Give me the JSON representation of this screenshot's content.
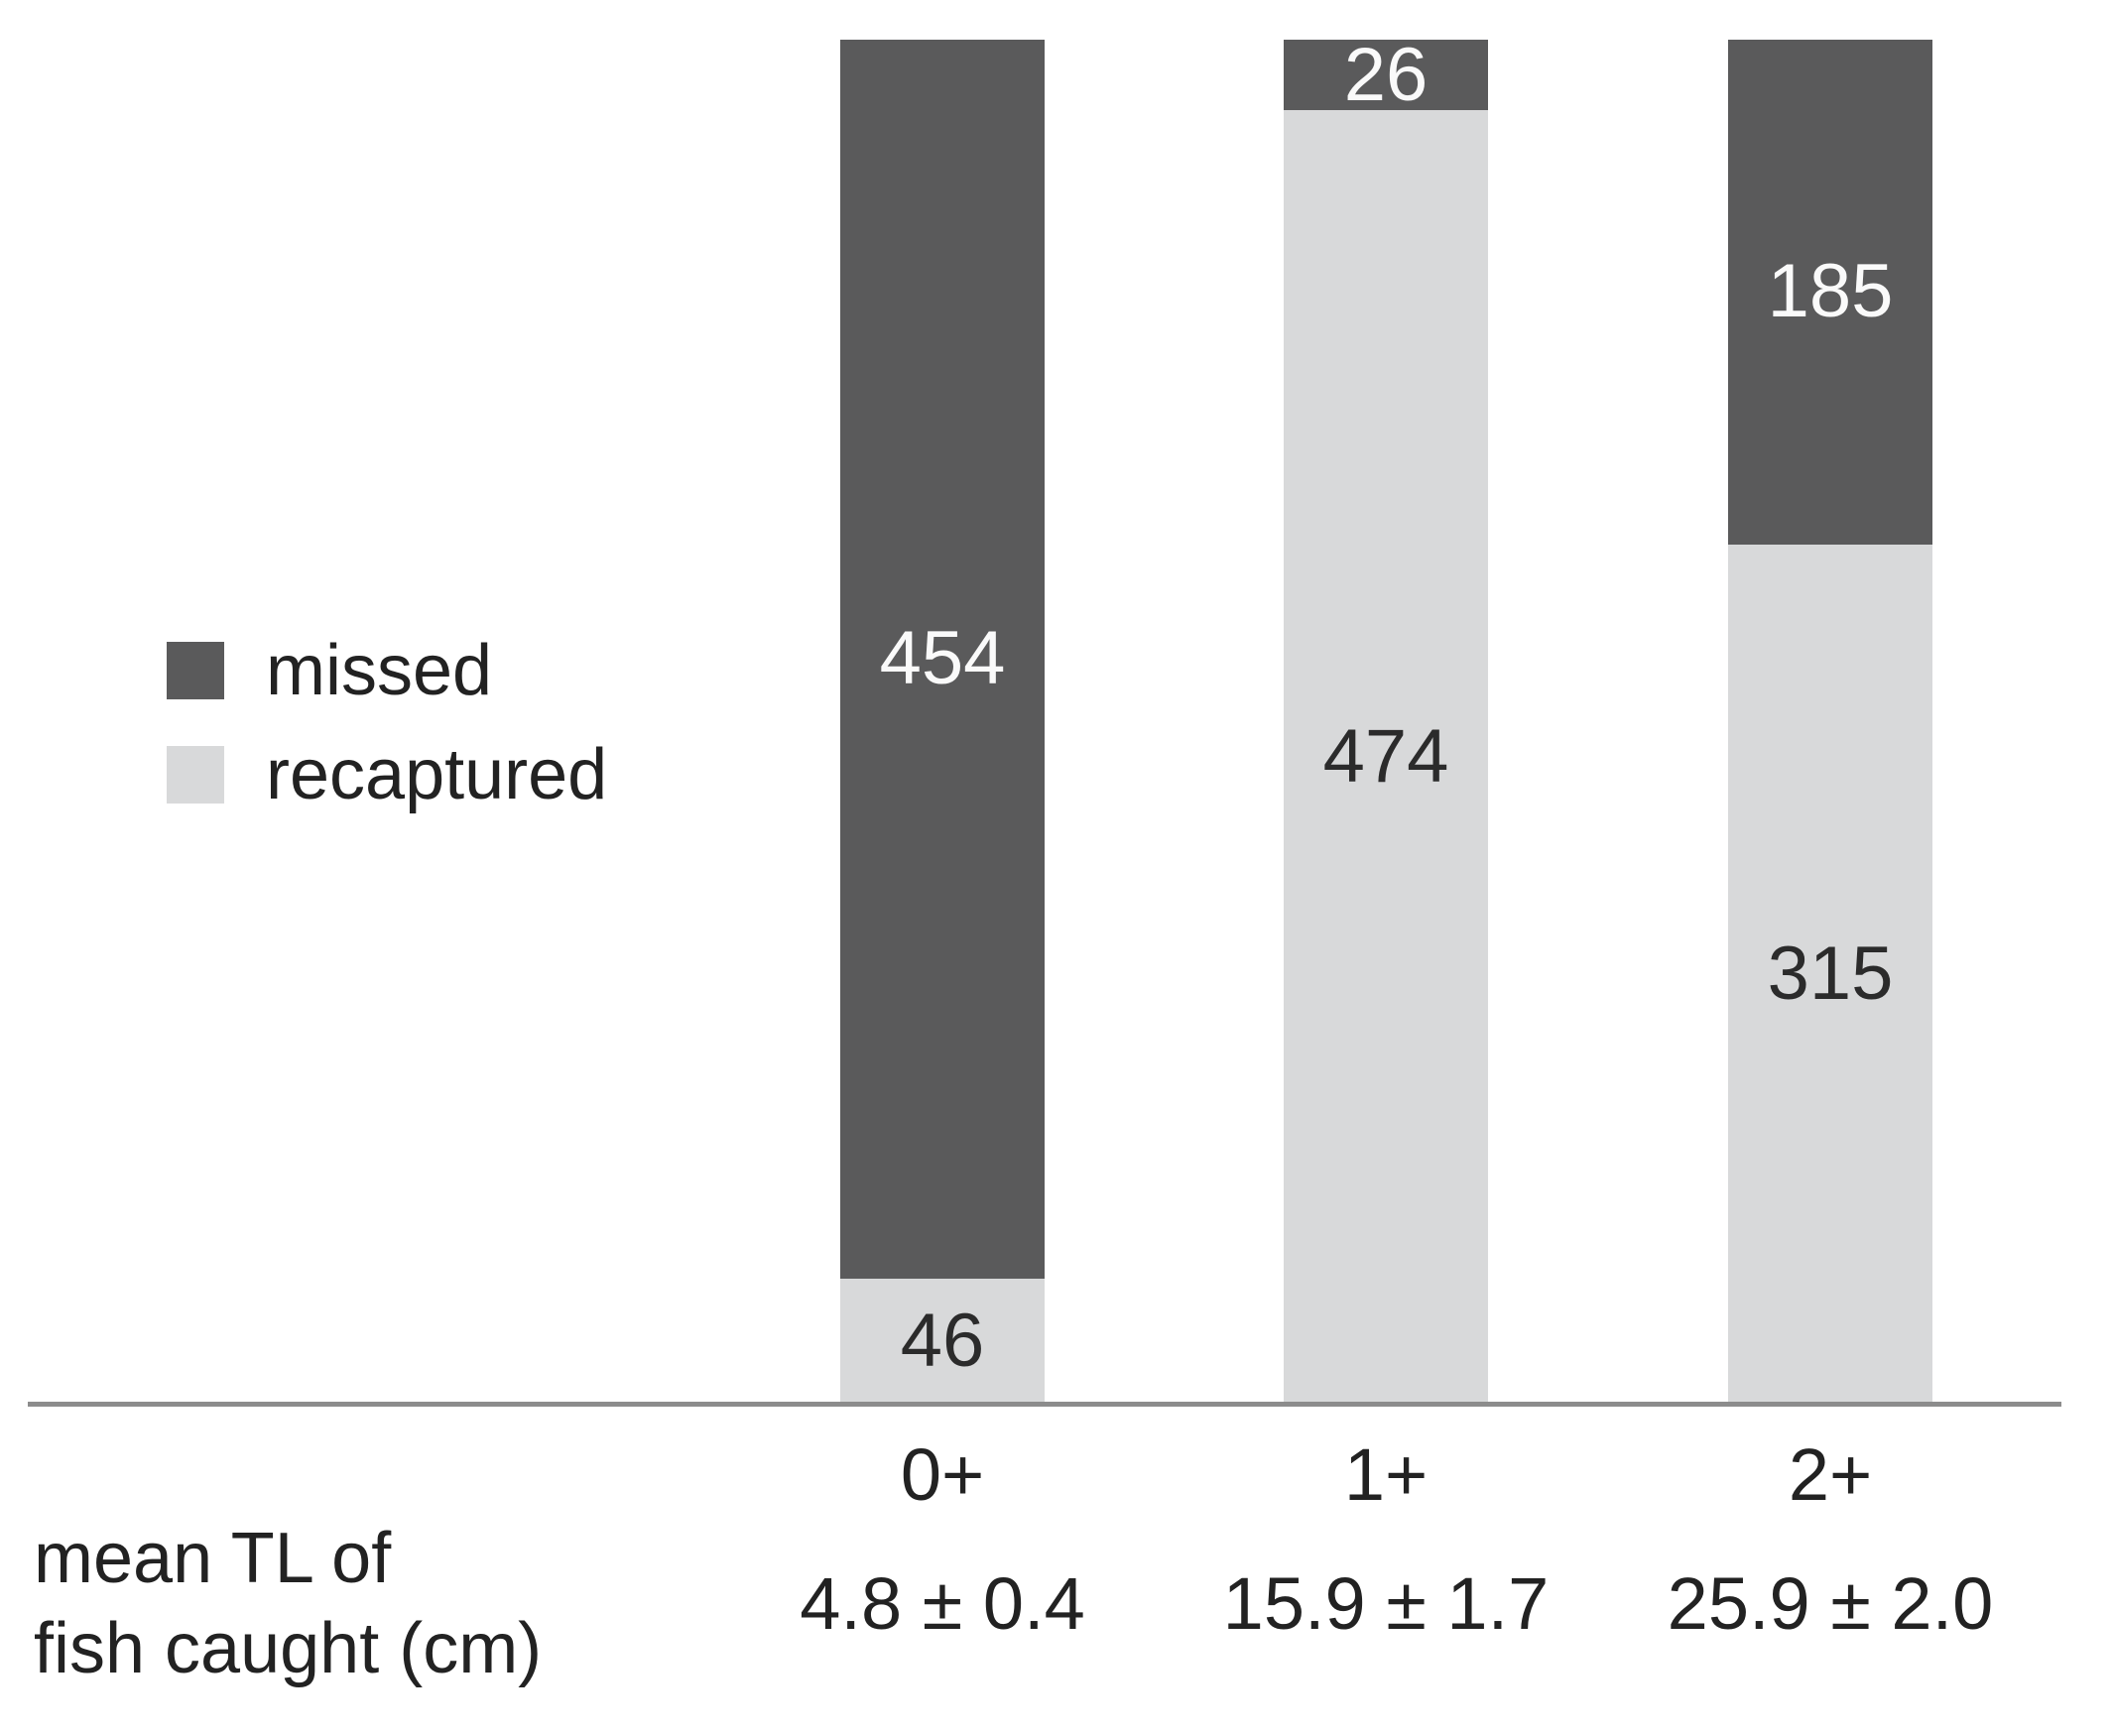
{
  "chart_data": {
    "type": "bar",
    "stacked": true,
    "orientation": "vertical",
    "categories": [
      "0+",
      "1+",
      "2+"
    ],
    "series": [
      {
        "name": "missed",
        "color": "#5a5a5b",
        "label_color": "#fafafa",
        "values": [
          454,
          26,
          185
        ]
      },
      {
        "name": "recaptured",
        "color": "#d8d9da",
        "label_color": "#2b2b2b",
        "values": [
          46,
          474,
          315
        ]
      }
    ],
    "value_labels": "centered inside each segment",
    "legend_position": "middle-left",
    "x_tick_labels": [
      "0+",
      "1+",
      "2+"
    ],
    "bar_annotations": [
      "4.8 ± 0.4",
      "15.9 ± 1.7",
      "25.9 ± 2.0"
    ],
    "annotation_row_label": "mean TL of fish caught (cm)",
    "title": "",
    "xlabel": "",
    "ylabel": "",
    "grid": false,
    "y_axis_visible": false,
    "x_baseline_visible": true
  },
  "legend": {
    "items": [
      {
        "label": "missed",
        "color": "#5a5a5b"
      },
      {
        "label": "recaptured",
        "color": "#d8d9da"
      }
    ]
  },
  "footer": {
    "row_label_line1": "mean TL of",
    "row_label_line2": "fish caught (cm)"
  },
  "colors": {
    "axis_line": "#8c8c8c",
    "text": "#222222",
    "background": "#ffffff"
  }
}
